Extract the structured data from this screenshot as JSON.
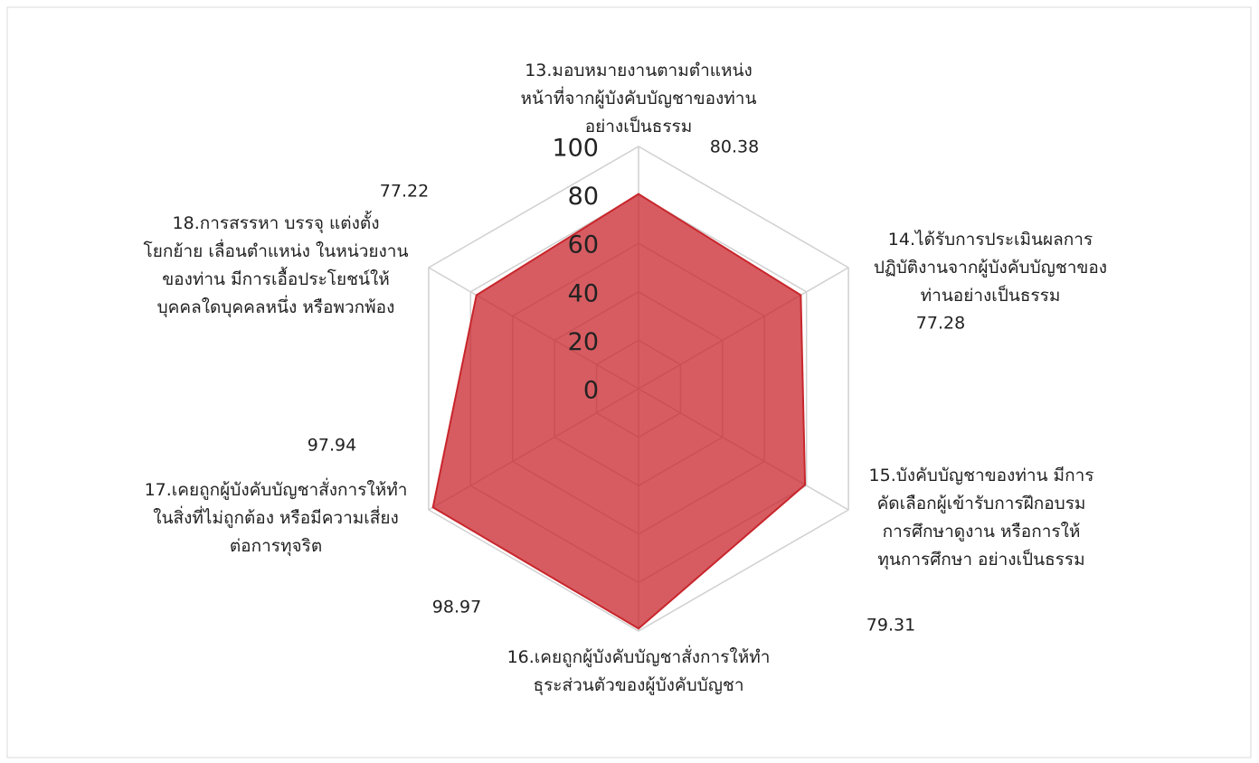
{
  "chart_data": {
    "type": "radar",
    "categories": [
      [
        "13.มอบหมายงานตามตำแหน่ง",
        "หน้าที่จากผู้บังคับบัญชาของท่าน",
        "อย่างเป็นธรรม"
      ],
      [
        "14.ได้รับการประเมินผลการ",
        "ปฏิบัติงานจากผู้บังคับบัญชาของ",
        "ท่านอย่างเป็นธรรม"
      ],
      [
        "15.บังคับบัญชาของท่าน มีการ",
        "คัดเลือกผู้เข้ารับการฝึกอบรม",
        "การศึกษาดูงาน หรือการให้",
        "ทุนการศึกษา อย่างเป็นธรรม"
      ],
      [
        "16.เคยถูกผู้บังคับบัญชาสั่งการให้ทำ",
        "ธุระส่วนตัวของผู้บังคับบัญชา"
      ],
      [
        "17.เคยถูกผู้บังคับบัญชาสั่งการให้ทำ",
        "ในสิ่งที่ไม่ถูกต้อง หรือมีความเสี่ยง",
        "ต่อการทุจริต"
      ],
      [
        "18.การสรรหา บรรจุ แต่งตั้ง",
        "โยกย้าย เลื่อนตำแหน่ง ในหน่วยงาน",
        "ของท่าน มีการเอื้อประโยชน์ให้",
        "บุคคลใดบุคคลหนึ่ง หรือพวกพ้อง"
      ]
    ],
    "values": [
      80.38,
      77.28,
      79.31,
      98.97,
      97.94,
      77.22
    ],
    "color": "#c8262c",
    "rlim": [
      0,
      100
    ],
    "rticks": [
      0,
      20,
      40,
      60,
      80,
      100
    ],
    "grid": true
  }
}
